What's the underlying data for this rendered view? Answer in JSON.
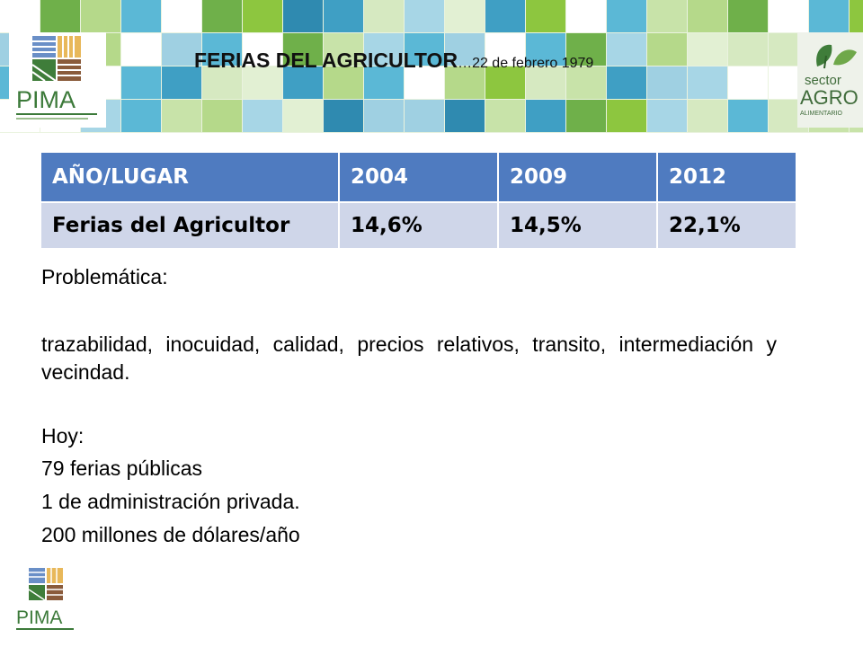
{
  "header": {
    "title_main": "FERIAS DEL AGRICULTOR",
    "title_sub": "…22  de febrero 1979"
  },
  "logos": {
    "pima": "PIMA",
    "agro_line1": "sector",
    "agro_line2": "AGRO",
    "agro_line3": "ALIMENTARIO"
  },
  "table": {
    "headers": [
      "AÑO/LUGAR",
      "2004",
      "2009",
      "2012"
    ],
    "rows": [
      [
        "Ferias del Agricultor",
        "14,6%",
        "14,5%",
        "22,1%"
      ]
    ]
  },
  "content": {
    "problem_heading": "Problemática:",
    "problem_text": "trazabilidad, inocuidad, calidad, precios relativos, transito, intermediación y vecindad.",
    "today_heading": "Hoy:",
    "today_items": [
      "79 ferias públicas",
      "1 de administración privada.",
      "200 millones de dólares/año"
    ]
  },
  "colors": {
    "table_header": "#4f7bc0",
    "table_row": "#cfd6e9",
    "banner_green": "#8dc63f",
    "banner_blue": "#5bb8d6"
  }
}
